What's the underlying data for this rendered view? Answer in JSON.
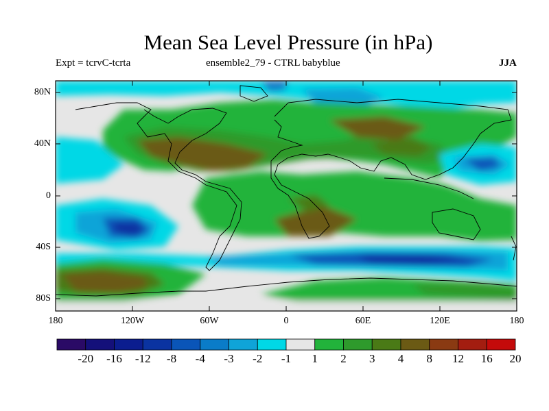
{
  "title": "Mean Sea Level Pressure (in hPa)",
  "subtitle_left": "Expt = tcrvC-tcrta",
  "subtitle_center": "ensemble2_79 - CTRL babyblue",
  "season": "JJA",
  "lat_labels": [
    "80N",
    "40N",
    "0",
    "40S",
    "80S"
  ],
  "lon_labels": [
    "180",
    "120W",
    "60W",
    "0",
    "60E",
    "120E",
    "180"
  ],
  "colorbar": {
    "labels": [
      "-20",
      "-16",
      "-12",
      "-8",
      "-4",
      "-3",
      "-2",
      "-1",
      "1",
      "2",
      "3",
      "4",
      "8",
      "12",
      "16",
      "20"
    ],
    "colors": [
      "#2a0a66",
      "#14107a",
      "#0b1d8f",
      "#0a33a1",
      "#0a55b8",
      "#0a7cc8",
      "#0fa4d8",
      "#00d8e6",
      "#e6e6e6",
      "#22b33b",
      "#2e9a2c",
      "#4a7a16",
      "#6b5a14",
      "#8a3a12",
      "#a31d10",
      "#c40a0a"
    ]
  }
}
